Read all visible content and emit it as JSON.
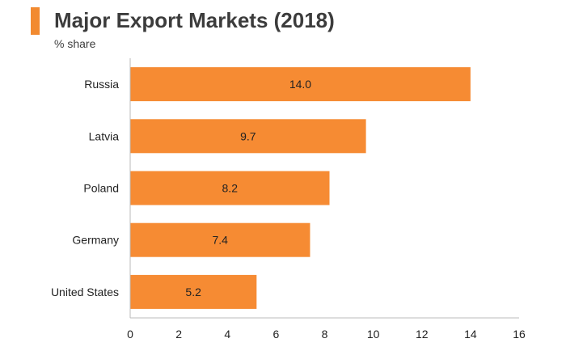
{
  "title": "Major Export Markets (2018)",
  "subtitle": "% share",
  "colors": {
    "accent": "#F28A30",
    "bar": "#F68B33",
    "axis": "#BBBBBB",
    "text": "#3C3C3C"
  },
  "chart_data": {
    "type": "bar",
    "orientation": "horizontal",
    "categories": [
      "Russia",
      "Latvia",
      "Poland",
      "Germany",
      "United States"
    ],
    "values": [
      14.0,
      9.7,
      8.2,
      7.4,
      5.2
    ],
    "data_labels": [
      "14.0",
      "9.7",
      "8.2",
      "7.4",
      "5.2"
    ],
    "xlim": [
      0,
      16
    ],
    "xticks": [
      0,
      2,
      4,
      6,
      8,
      10,
      12,
      14,
      16
    ],
    "xlabel": "",
    "ylabel": "",
    "grid": false,
    "legend": "none"
  }
}
